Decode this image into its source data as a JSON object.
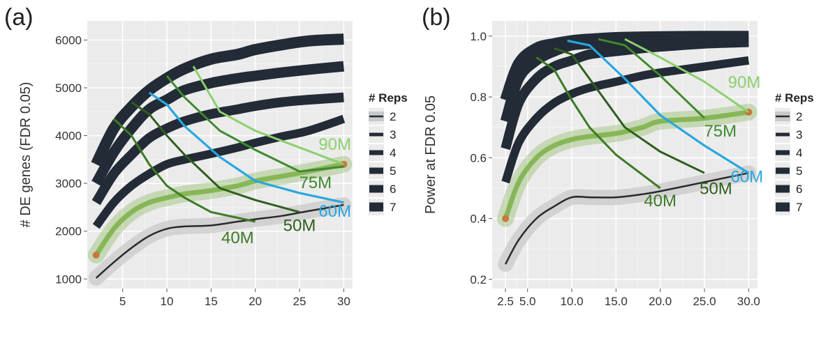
{
  "colors": {
    "panel_bg": "#ebebeb",
    "grid": "#ffffff",
    "reps_band": "#222b36",
    "reps2_band": "#c9c9c9",
    "reps2_line": "#2a2a2a",
    "green_band": "#7fb24d",
    "depth_40M": "#3d7a26",
    "depth_50M": "#2f5e1e",
    "depth_60M": "#27a7e0",
    "depth_75M": "#3f8a2e",
    "depth_90M": "#8ccf6e",
    "endpoint": "#c9773b"
  },
  "chart_data": [
    {
      "type": "line",
      "panel_label": "(a)",
      "ylabel": "# DE genes (FDR 0.05)",
      "xlabel": "",
      "xlim": [
        1,
        31
      ],
      "ylim": [
        800,
        6400
      ],
      "xticks": [
        5,
        10,
        15,
        20,
        25,
        30
      ],
      "xtick_labels": [
        "5",
        "10",
        "15",
        "20",
        "25",
        "30"
      ],
      "yticks": [
        1000,
        2000,
        3000,
        4000,
        5000,
        6000
      ],
      "ytick_labels": [
        "1000",
        "2000",
        "3000",
        "4000",
        "5000",
        "6000"
      ],
      "legend": {
        "title": "# Reps",
        "entries": [
          "2",
          "3",
          "4",
          "5",
          "6",
          "7"
        ],
        "placement": "right"
      },
      "rep_series": [
        {
          "name": "2",
          "x": [
            2,
            4,
            6,
            8,
            10,
            12,
            15,
            18,
            20,
            23,
            26,
            30
          ],
          "y": [
            1020,
            1350,
            1650,
            1900,
            2050,
            2100,
            2120,
            2200,
            2250,
            2320,
            2420,
            2550
          ]
        },
        {
          "name": "3",
          "x": [
            2,
            4,
            6,
            8,
            10,
            12,
            15,
            18,
            20,
            23,
            26,
            30
          ],
          "y": [
            1500,
            2050,
            2400,
            2600,
            2700,
            2780,
            2850,
            2950,
            3050,
            3150,
            3250,
            3400
          ]
        },
        {
          "name": "4",
          "x": [
            2,
            4,
            6,
            8,
            10,
            12,
            15,
            18,
            20,
            23,
            26,
            30
          ],
          "y": [
            2100,
            2600,
            2950,
            3200,
            3400,
            3500,
            3620,
            3750,
            3850,
            3980,
            4100,
            4350
          ]
        },
        {
          "name": "5",
          "x": [
            2,
            4,
            6,
            8,
            10,
            12,
            15,
            18,
            20,
            23,
            26,
            30
          ],
          "y": [
            2600,
            3200,
            3600,
            3950,
            4150,
            4300,
            4450,
            4550,
            4620,
            4700,
            4750,
            4800
          ]
        },
        {
          "name": "6",
          "x": [
            2,
            4,
            6,
            8,
            10,
            12,
            15,
            18,
            20,
            23,
            26,
            30
          ],
          "y": [
            3000,
            3650,
            4150,
            4550,
            4750,
            4950,
            5100,
            5200,
            5250,
            5320,
            5380,
            5450
          ]
        },
        {
          "name": "7",
          "x": [
            2,
            4,
            6,
            8,
            10,
            12,
            15,
            18,
            20,
            23,
            26,
            30
          ],
          "y": [
            3400,
            4150,
            4600,
            4950,
            5200,
            5400,
            5600,
            5700,
            5800,
            5900,
            5980,
            6020
          ]
        }
      ],
      "depth_series": [
        {
          "name": "40M",
          "x": [
            4,
            6,
            8,
            10,
            12,
            15,
            20
          ],
          "y": [
            4350,
            4000,
            3400,
            2950,
            2700,
            2400,
            2200
          ]
        },
        {
          "name": "50M",
          "x": [
            6,
            8,
            10,
            12,
            16,
            20,
            25
          ],
          "y": [
            4700,
            4450,
            4000,
            3600,
            2900,
            2650,
            2400
          ]
        },
        {
          "name": "60M",
          "x": [
            8,
            10,
            12,
            16,
            20,
            25,
            30
          ],
          "y": [
            4900,
            4650,
            4200,
            3550,
            3050,
            2800,
            2600
          ]
        },
        {
          "name": "75M",
          "x": [
            10,
            12,
            16,
            20,
            25,
            30
          ],
          "y": [
            5250,
            4800,
            4100,
            3700,
            3250,
            3350
          ]
        },
        {
          "name": "90M",
          "x": [
            13,
            16,
            20,
            25,
            30
          ],
          "y": [
            5450,
            4500,
            4100,
            3750,
            3400
          ]
        }
      ],
      "depth_labels": [
        {
          "text": "40M",
          "x": 18,
          "y": 1750,
          "series": "40M"
        },
        {
          "text": "50M",
          "x": 25,
          "y": 2000,
          "series": "50M"
        },
        {
          "text": "60M",
          "x": 29,
          "y": 2300,
          "series": "60M"
        },
        {
          "text": "75M",
          "x": 26.8,
          "y": 2900,
          "series": "75M"
        },
        {
          "text": "90M",
          "x": 29,
          "y": 3700,
          "series": "90M"
        }
      ]
    },
    {
      "type": "line",
      "panel_label": "(b)",
      "ylabel": "Power at FDR 0.05",
      "xlabel": "",
      "xlim": [
        1,
        31
      ],
      "ylim": [
        0.17,
        1.05
      ],
      "xticks": [
        2.5,
        5.0,
        10.0,
        15.0,
        20.0,
        25.0,
        30.0
      ],
      "xtick_labels": [
        "2.5",
        "5.0",
        "10.0",
        "15.0",
        "20.0",
        "25.0",
        "30.0"
      ],
      "yticks": [
        0.2,
        0.4,
        0.6,
        0.8,
        1.0
      ],
      "ytick_labels": [
        "0.2",
        "0.4",
        "0.6",
        "0.8",
        "1.0"
      ],
      "legend": {
        "title": "# Reps",
        "entries": [
          "2",
          "3",
          "4",
          "5",
          "6",
          "7"
        ],
        "placement": "right"
      },
      "rep_series": [
        {
          "name": "2",
          "x": [
            2.5,
            4,
            6,
            8,
            10,
            12,
            15,
            18,
            20,
            25,
            30
          ],
          "y": [
            0.25,
            0.33,
            0.4,
            0.44,
            0.47,
            0.47,
            0.47,
            0.48,
            0.49,
            0.52,
            0.55
          ]
        },
        {
          "name": "3",
          "x": [
            2.5,
            4,
            6,
            8,
            10,
            12,
            15,
            18,
            20,
            25,
            30
          ],
          "y": [
            0.4,
            0.52,
            0.6,
            0.64,
            0.66,
            0.67,
            0.68,
            0.7,
            0.72,
            0.73,
            0.75
          ]
        },
        {
          "name": "4",
          "x": [
            2.5,
            4,
            6,
            8,
            10,
            12,
            15,
            18,
            20,
            25,
            30
          ],
          "y": [
            0.52,
            0.65,
            0.73,
            0.78,
            0.81,
            0.83,
            0.85,
            0.87,
            0.88,
            0.9,
            0.92
          ]
        },
        {
          "name": "5",
          "x": [
            2.5,
            4,
            6,
            8,
            10,
            12,
            15,
            18,
            20,
            25,
            30
          ],
          "y": [
            0.63,
            0.78,
            0.86,
            0.9,
            0.92,
            0.94,
            0.95,
            0.96,
            0.965,
            0.975,
            0.98
          ]
        },
        {
          "name": "6",
          "x": [
            2.5,
            4,
            6,
            8,
            10,
            12,
            15,
            18,
            20,
            25,
            30
          ],
          "y": [
            0.72,
            0.86,
            0.92,
            0.95,
            0.97,
            0.975,
            0.98,
            0.985,
            0.99,
            0.99,
            0.99
          ]
        },
        {
          "name": "7",
          "x": [
            2.5,
            4,
            6,
            8,
            10,
            12,
            15,
            18,
            20,
            25,
            30
          ],
          "y": [
            0.79,
            0.91,
            0.96,
            0.975,
            0.985,
            0.99,
            0.995,
            0.997,
            0.998,
            0.999,
            0.999
          ]
        }
      ],
      "depth_series": [
        {
          "name": "40M",
          "x": [
            6,
            8,
            10,
            12,
            15,
            20
          ],
          "y": [
            0.93,
            0.89,
            0.79,
            0.7,
            0.61,
            0.5
          ]
        },
        {
          "name": "50M",
          "x": [
            8,
            10,
            12,
            16,
            20,
            25
          ],
          "y": [
            0.96,
            0.94,
            0.86,
            0.7,
            0.62,
            0.55
          ]
        },
        {
          "name": "60M",
          "x": [
            9.5,
            12,
            16,
            20,
            25,
            30
          ],
          "y": [
            0.985,
            0.97,
            0.86,
            0.74,
            0.64,
            0.55
          ]
        },
        {
          "name": "75M",
          "x": [
            13,
            16,
            20,
            25
          ],
          "y": [
            0.99,
            0.97,
            0.87,
            0.73
          ]
        },
        {
          "name": "90M",
          "x": [
            16,
            20,
            25,
            30
          ],
          "y": [
            0.99,
            0.93,
            0.85,
            0.75
          ]
        }
      ],
      "depth_labels": [
        {
          "text": "40M",
          "x": 20,
          "y": 0.44,
          "series": "40M"
        },
        {
          "text": "50M",
          "x": 26.3,
          "y": 0.48,
          "series": "50M"
        },
        {
          "text": "60M",
          "x": 29.8,
          "y": 0.52,
          "series": "60M"
        },
        {
          "text": "75M",
          "x": 26.8,
          "y": 0.67,
          "series": "75M"
        },
        {
          "text": "90M",
          "x": 29.5,
          "y": 0.83,
          "series": "90M"
        }
      ]
    }
  ]
}
